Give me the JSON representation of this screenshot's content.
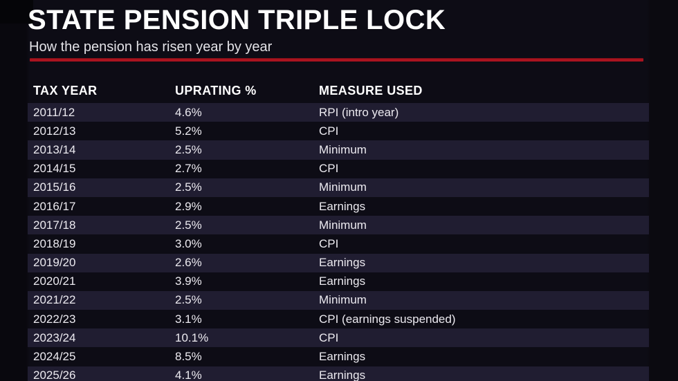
{
  "chart_data": {
    "type": "table",
    "title": "STATE PENSION TRIPLE LOCK",
    "subtitle": "How the pension has risen year by year",
    "columns": [
      "TAX YEAR",
      "UPRATING %",
      "MEASURE USED"
    ],
    "rows": [
      [
        "2011/12",
        "4.6%",
        "RPI (intro year)"
      ],
      [
        "2012/13",
        "5.2%",
        "CPI"
      ],
      [
        "2013/14",
        "2.5%",
        "Minimum"
      ],
      [
        "2014/15",
        "2.7%",
        "CPI"
      ],
      [
        "2015/16",
        "2.5%",
        "Minimum"
      ],
      [
        "2016/17",
        "2.9%",
        "Earnings"
      ],
      [
        "2017/18",
        "2.5%",
        "Minimum"
      ],
      [
        "2018/19",
        "3.0%",
        "CPI"
      ],
      [
        "2019/20",
        "2.6%",
        "Earnings"
      ],
      [
        "2020/21",
        "3.9%",
        "Earnings"
      ],
      [
        "2021/22",
        "2.5%",
        "Minimum"
      ],
      [
        "2022/23",
        "3.1%",
        "CPI (earnings suspended)"
      ],
      [
        "2023/24",
        "10.1%",
        "CPI"
      ],
      [
        "2024/25",
        "8.5%",
        "Earnings"
      ],
      [
        "2025/26",
        "4.1%",
        "Earnings"
      ]
    ],
    "layout": {
      "stripe_pattern": "odd rows shaded starting with first data row",
      "header_bold": true,
      "grid": false
    }
  },
  "colors": {
    "background": "#0d0c15",
    "left_margin": "#09080e",
    "stripe": "#201d31",
    "accent_red": "#b2151f",
    "title_text": "#ffffff",
    "body_text": "#eceaf0"
  }
}
